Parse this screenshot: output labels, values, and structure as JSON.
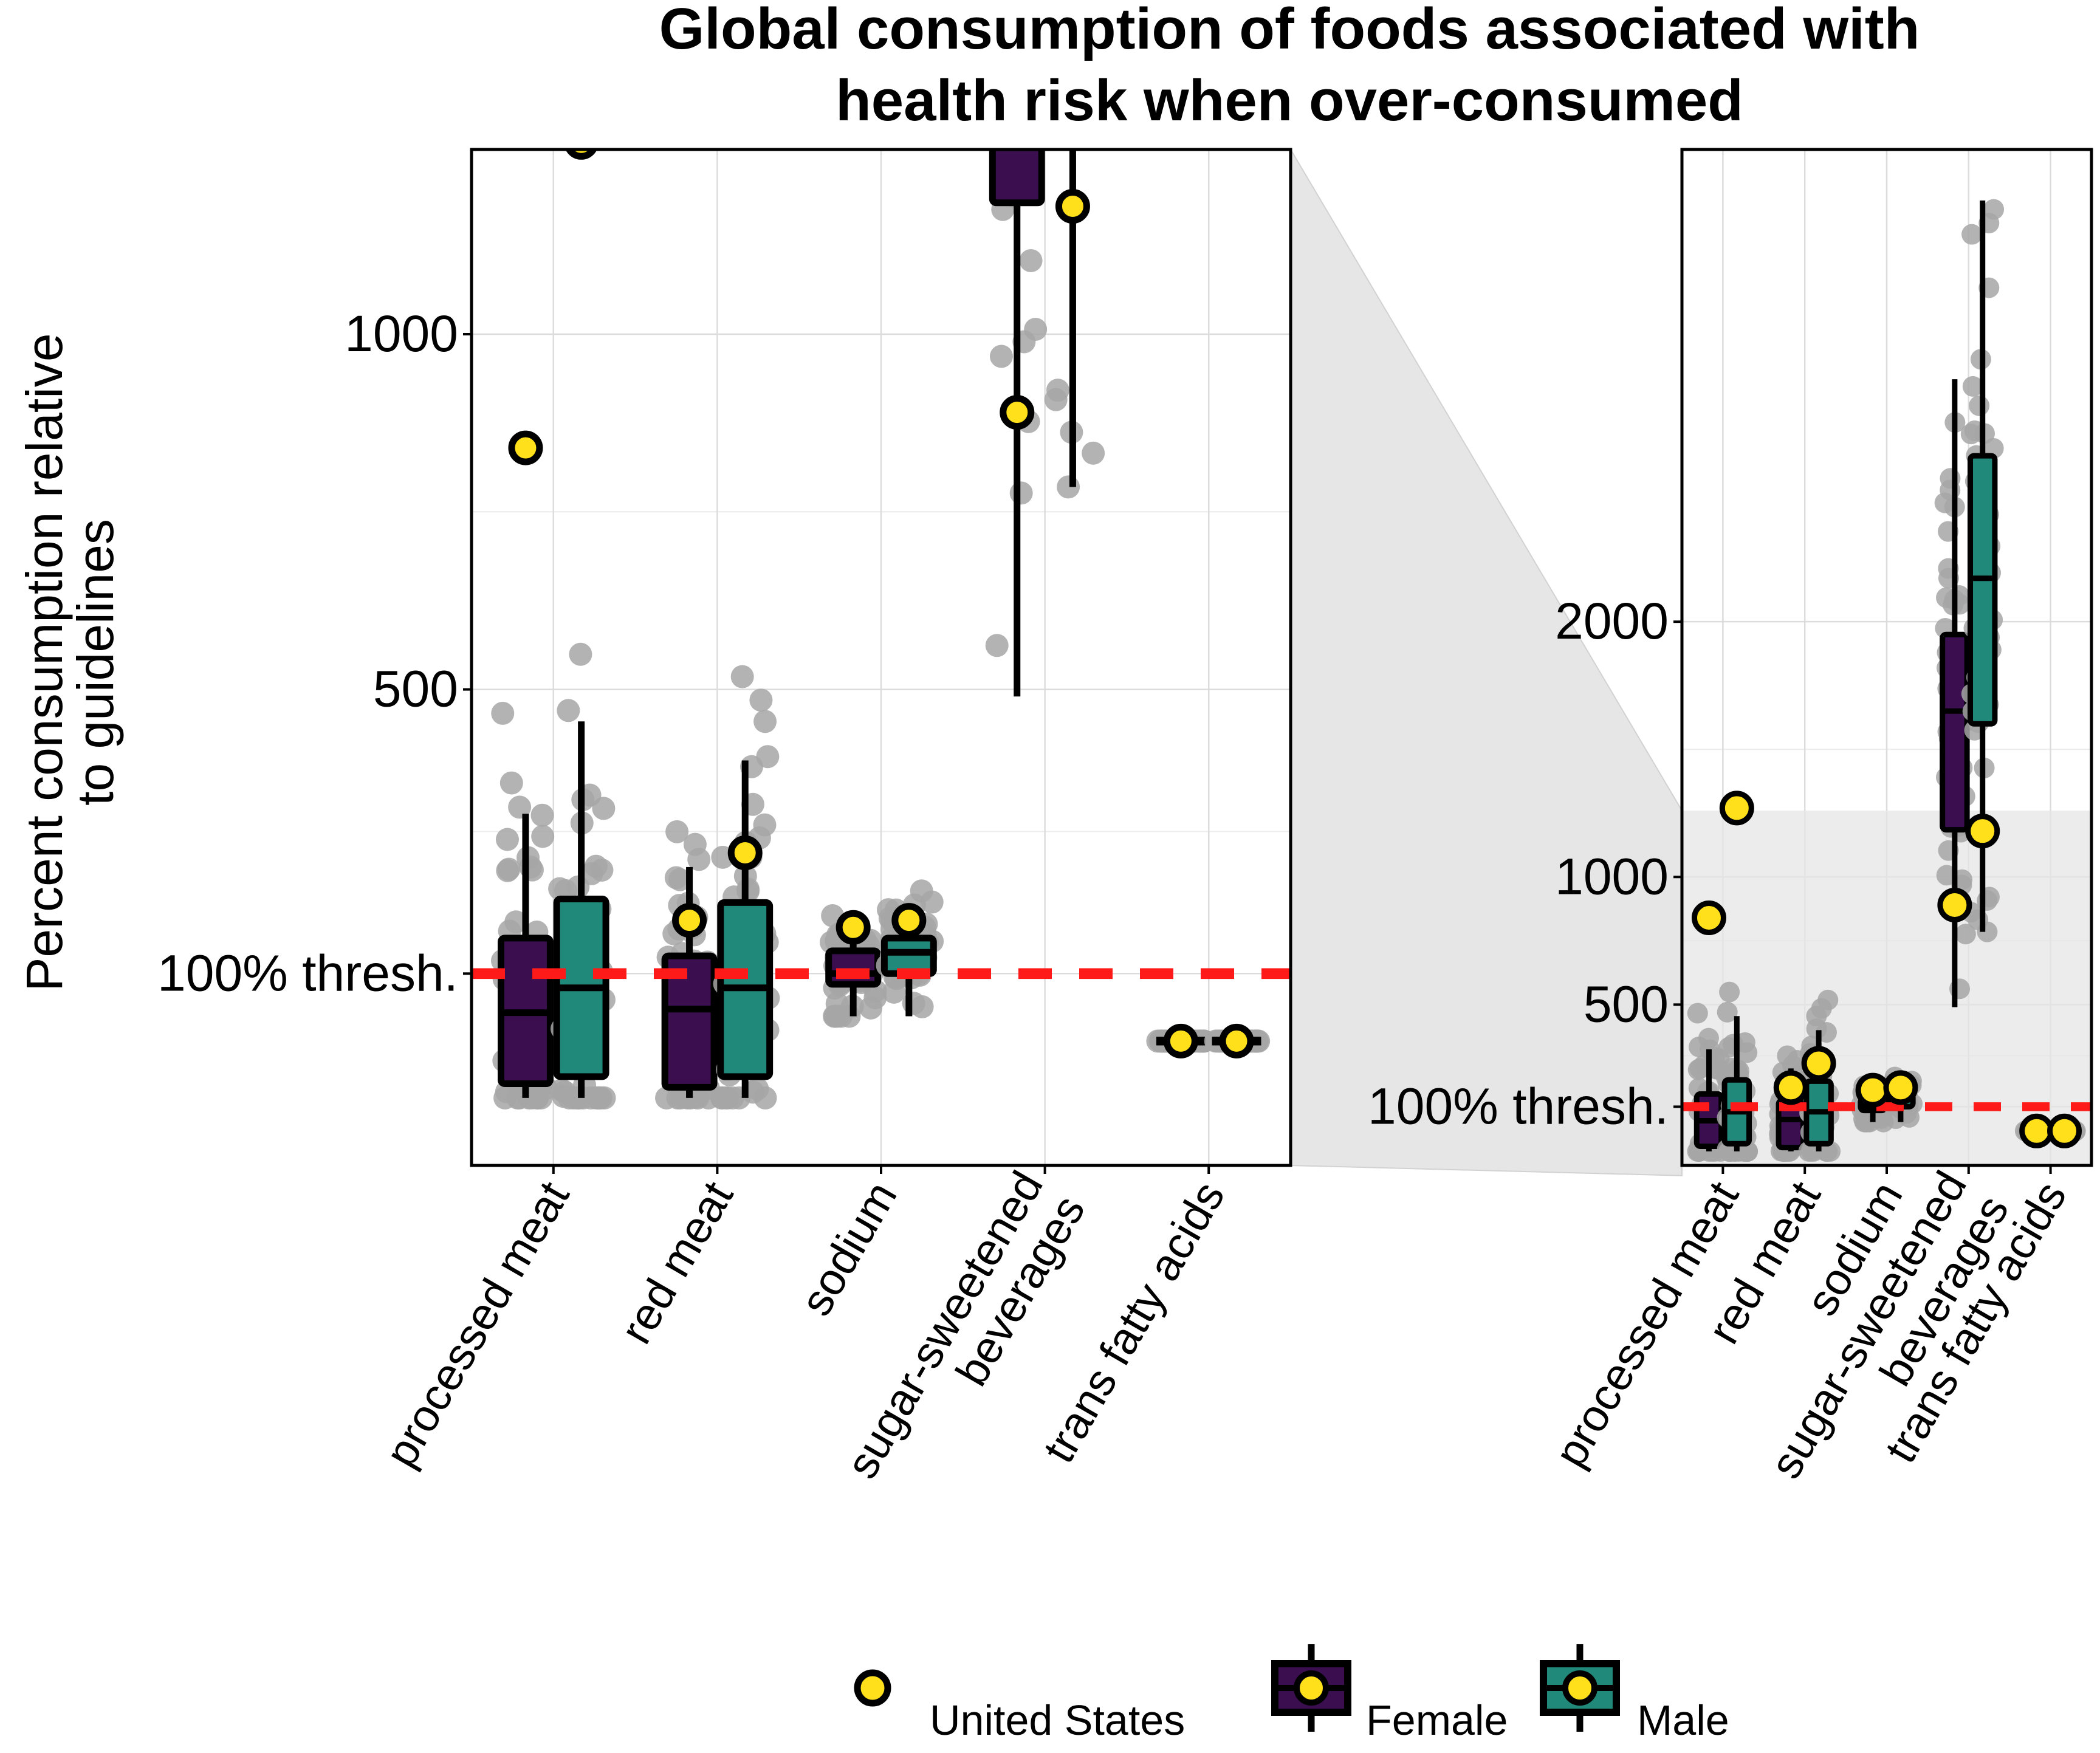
{
  "chart_data": {
    "type": "box",
    "title": [
      "Global consumption of foods associated with",
      "health risk when over-consumed"
    ],
    "ylabel": [
      "Percent consumption relative",
      "to guidelines"
    ],
    "threshold": {
      "value": 100,
      "label": "100% thresh.",
      "color": "#ff1a1a"
    },
    "categories": [
      "processed meat",
      "red meat",
      "sodium",
      "sugar-sweetened beverages",
      "trans fatty acids"
    ],
    "colors": {
      "female": "#3b0f4f",
      "male": "#21897a",
      "us_point": "#ffe01a",
      "country_points": "#a6a6a6"
    },
    "main_panel": {
      "ylim": [
        -170,
        1260
      ],
      "yticks": [
        {
          "value": 100,
          "label": "100% thresh."
        },
        {
          "value": 500,
          "label": "500"
        },
        {
          "value": 1000,
          "label": "1000"
        }
      ],
      "zoom_source_range": [
        -170,
        1260
      ]
    },
    "inset_panel": {
      "ylim": [
        -130,
        3850
      ],
      "yticks": [
        {
          "value": 100,
          "label": "100% thresh."
        },
        {
          "value": 500,
          "label": "500"
        },
        {
          "value": 1000,
          "label": "1000"
        },
        {
          "value": 2000,
          "label": "2000"
        }
      ]
    },
    "series": [
      {
        "name": "Female",
        "boxes": [
          {
            "category": "processed meat",
            "low": -75,
            "q1": -55,
            "median": 45,
            "q3": 150,
            "high": 325
          },
          {
            "category": "red meat",
            "low": -75,
            "q1": -60,
            "median": 50,
            "q3": 125,
            "high": 250
          },
          {
            "category": "sodium",
            "low": 40,
            "q1": 85,
            "median": 100,
            "q3": 132,
            "high": 148
          },
          {
            "category": "sugar-sweetened beverages",
            "low": 490,
            "q1": 1185,
            "median": 1650,
            "q3": 1950,
            "high": 2950
          },
          {
            "category": "trans fatty acids",
            "low": 5,
            "q1": 5,
            "median": 5,
            "q3": 5,
            "high": 5
          }
        ],
        "us_values": [
          840,
          175,
          165,
          890,
          5
        ]
      },
      {
        "name": "Male",
        "boxes": [
          {
            "category": "processed meat",
            "low": -75,
            "q1": -45,
            "median": 80,
            "q3": 205,
            "high": 455
          },
          {
            "category": "red meat",
            "low": -75,
            "q1": -45,
            "median": 80,
            "q3": 200,
            "high": 400
          },
          {
            "category": "sodium",
            "low": 40,
            "q1": 100,
            "median": 130,
            "q3": 150,
            "high": 170
          },
          {
            "category": "sugar-sweetened beverages",
            "low": 785,
            "q1": 1600,
            "median": 2170,
            "q3": 2650,
            "high": 3650
          },
          {
            "category": "trans fatty acids",
            "low": 5,
            "q1": 5,
            "median": 5,
            "q3": 5,
            "high": 5
          }
        ],
        "us_values": [
          1270,
          270,
          175,
          1180,
          5
        ]
      }
    ],
    "legend": {
      "placement": "bottom",
      "items": [
        "United States",
        "Female",
        "Male"
      ]
    }
  }
}
